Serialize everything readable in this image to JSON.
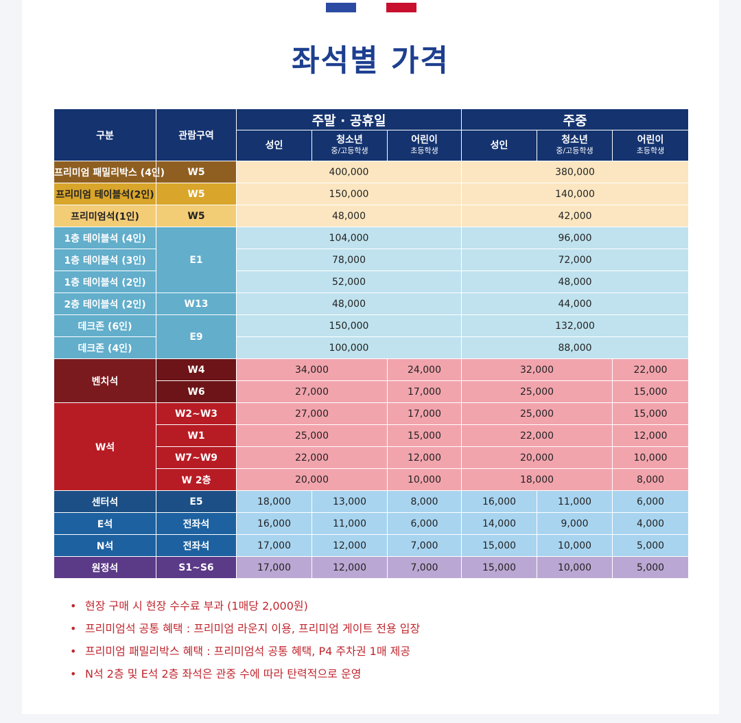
{
  "title": "좌석별 가격",
  "header": {
    "category": "구분",
    "zone": "관람구역",
    "weekend": "주말 · 공휴일",
    "weekday": "주중",
    "adult": "성인",
    "youth": "청소년",
    "youth_sub": "중/고등학생",
    "child": "어린이",
    "child_sub": "초등학생"
  },
  "rows": {
    "family_box": {
      "label": "프리미엄 패밀리박스 (4인)",
      "zone": "W5",
      "weekend": "400,000",
      "weekday": "380,000"
    },
    "premium_table": {
      "label": "프리미엄 테이블석(2인)",
      "zone": "W5",
      "weekend": "150,000",
      "weekday": "140,000"
    },
    "premium_seat": {
      "label": "프리미엄석(1인)",
      "zone": "W5",
      "weekend": "48,000",
      "weekday": "42,000"
    },
    "f1_table4": {
      "label": "1층 테이블석 (4인)",
      "weekend": "104,000",
      "weekday": "96,000"
    },
    "f1_table3": {
      "label": "1층 테이블석 (3인)",
      "weekend": "78,000",
      "weekday": "72,000"
    },
    "f1_table2": {
      "label": "1층 테이블석 (2인)",
      "weekend": "52,000",
      "weekday": "48,000"
    },
    "f1_zone": "E1",
    "f2_table2": {
      "label": "2층 테이블석 (2인)",
      "zone": "W13",
      "weekend": "48,000",
      "weekday": "44,000"
    },
    "deck6": {
      "label": "데크존 (6인)",
      "weekend": "150,000",
      "weekday": "132,000"
    },
    "deck4": {
      "label": "데크존 (4인)",
      "weekend": "100,000",
      "weekday": "88,000"
    },
    "deck_zone": "E9",
    "bench_label": "벤치석",
    "bench": [
      {
        "zone": "W4",
        "we_adult_youth": "34,000",
        "we_child": "24,000",
        "wd_adult_youth": "32,000",
        "wd_child": "22,000"
      },
      {
        "zone": "W6",
        "we_adult_youth": "27,000",
        "we_child": "17,000",
        "wd_adult_youth": "25,000",
        "wd_child": "15,000"
      }
    ],
    "w_label": "W석",
    "w": [
      {
        "zone": "W2~W3",
        "we_adult_youth": "27,000",
        "we_child": "17,000",
        "wd_adult_youth": "25,000",
        "wd_child": "15,000"
      },
      {
        "zone": "W1",
        "we_adult_youth": "25,000",
        "we_child": "15,000",
        "wd_adult_youth": "22,000",
        "wd_child": "12,000"
      },
      {
        "zone": "W7~W9",
        "we_adult_youth": "22,000",
        "we_child": "12,000",
        "wd_adult_youth": "20,000",
        "wd_child": "10,000"
      },
      {
        "zone": "W 2층",
        "we_adult_youth": "20,000",
        "we_child": "10,000",
        "wd_adult_youth": "18,000",
        "wd_child": "8,000"
      }
    ],
    "center": {
      "label": "센터석",
      "zone": "E5",
      "v": [
        "18,000",
        "13,000",
        "8,000",
        "16,000",
        "11,000",
        "6,000"
      ]
    },
    "e_seat": {
      "label": "E석",
      "zone": "전좌석",
      "v": [
        "16,000",
        "11,000",
        "6,000",
        "14,000",
        "9,000",
        "4,000"
      ]
    },
    "n_seat": {
      "label": "N석",
      "zone": "전좌석",
      "v": [
        "17,000",
        "12,000",
        "7,000",
        "15,000",
        "10,000",
        "5,000"
      ]
    },
    "won": {
      "label": "원정석",
      "zone": "S1~S6",
      "v": [
        "17,000",
        "12,000",
        "7,000",
        "15,000",
        "10,000",
        "5,000"
      ]
    }
  },
  "notes": [
    "현장 구매 시 현장 수수료 부과 (1매당 2,000원)",
    "프리미엄석 공통 혜택 : 프리미엄 라운지 이용, 프리미엄 게이트 전용 입장",
    "프리미엄 패밀리박스 혜택 : 프리미엄석 공통 혜택, P4 주차권 1매 제공",
    "N석 2층 및 E석 2층 좌석은 관중 수에 따라 탄력적으로 운영"
  ],
  "colors": {
    "title": "#1d3f8f",
    "header": "#14336f",
    "note": "#c0262e"
  }
}
